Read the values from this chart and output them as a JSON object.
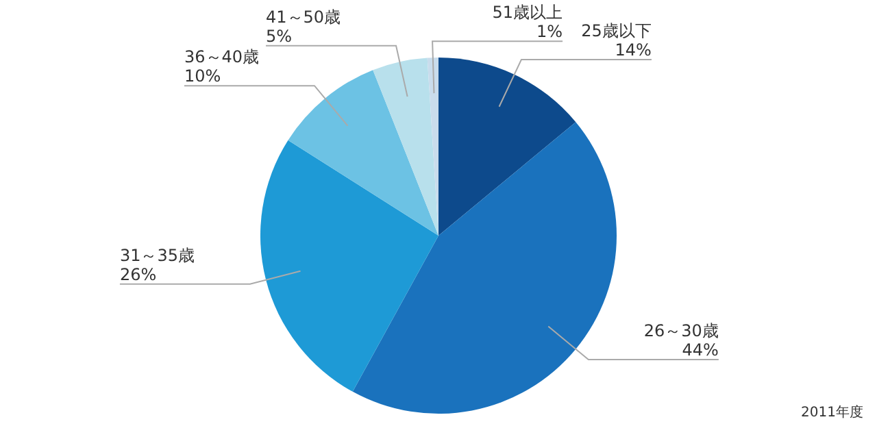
{
  "chart_data": {
    "type": "pie",
    "categories": [
      "25歳以下",
      "26～30歳",
      "31～35歳",
      "36～40歳",
      "41～50歳",
      "51歳以上"
    ],
    "values": [
      14,
      44,
      26,
      10,
      5,
      1
    ],
    "value_labels": [
      "14%",
      "44%",
      "26%",
      "10%",
      "5%",
      "1%"
    ],
    "colors": [
      "#0d4a8c",
      "#1a72bd",
      "#1e9ad6",
      "#6cc2e4",
      "#b8e0ec",
      "#c9dcec"
    ],
    "annotations": [
      "2011年度"
    ]
  }
}
